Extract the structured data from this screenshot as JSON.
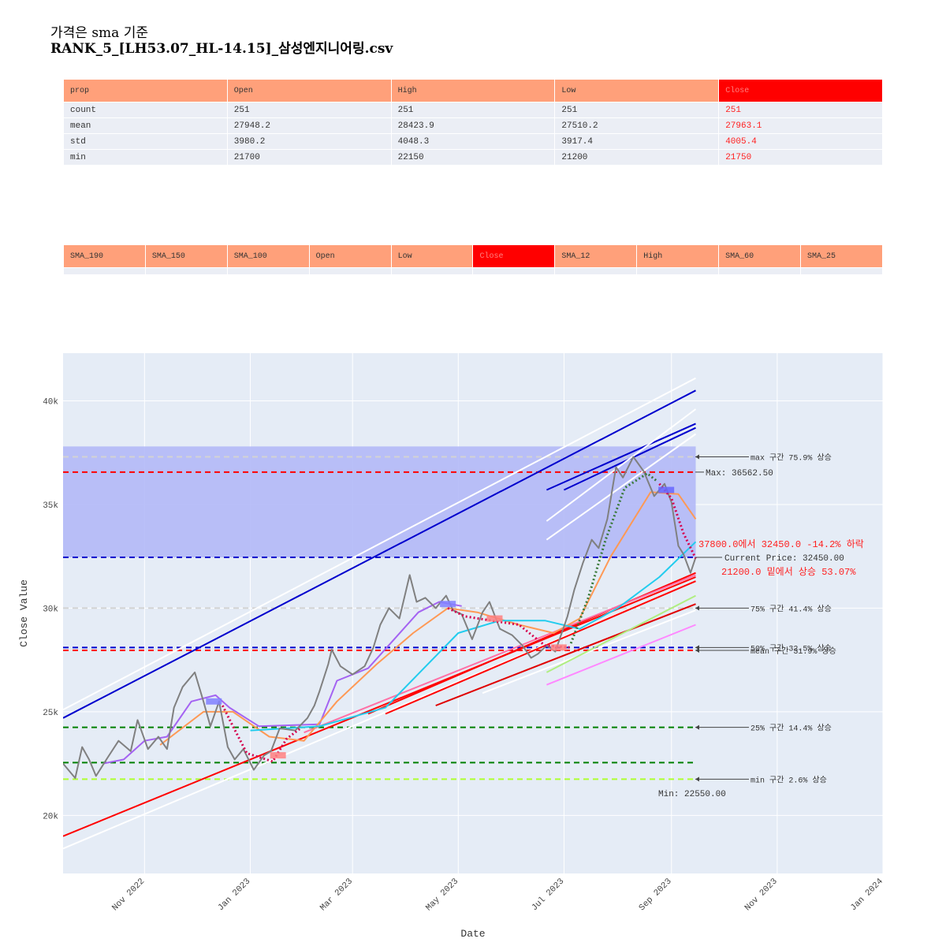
{
  "title": {
    "line1": "가격은 sma 기준",
    "line2": "RANK_5_[LH53.07_HL-14.15]_삼성엔지니어링.csv"
  },
  "stats_table": {
    "headers": [
      "prop",
      "Open",
      "High",
      "Low",
      "Close"
    ],
    "rows": [
      [
        "count",
        "251",
        "251",
        "251",
        "251"
      ],
      [
        "mean",
        "27948.2",
        "28423.9",
        "27510.2",
        "27963.1"
      ],
      [
        "std",
        "3980.2",
        "4048.3",
        "3917.4",
        "4005.4"
      ],
      [
        "min",
        "21700",
        "22150",
        "21200",
        "21750"
      ]
    ],
    "highlight_column": "Close"
  },
  "sma_table": {
    "headers": [
      "SMA_190",
      "SMA_150",
      "SMA_100",
      "Open",
      "Low",
      "Close",
      "SMA_12",
      "High",
      "SMA_60",
      "SMA_25"
    ],
    "highlight_column": "Close"
  },
  "chart_data": {
    "type": "line",
    "x_axis": {
      "label": "Date",
      "range": [
        "2022-09-15",
        "2024-01-01"
      ],
      "ticks": [
        "2022-11-01",
        "2023-01-01",
        "2023-03-01",
        "2023-05-01",
        "2023-07-01",
        "2023-09-01",
        "2023-11-01",
        "2024-01-01"
      ],
      "tick_labels": [
        "Nov 2022",
        "Jan 2023",
        "Mar 2023",
        "May 2023",
        "Jul 2023",
        "Sep 2023",
        "Nov 2023",
        "Jan 2024"
      ]
    },
    "y_axis": {
      "label": "Close Value",
      "range": [
        17200,
        42300
      ],
      "ticks": [
        20000,
        25000,
        30000,
        35000,
        40000
      ],
      "tick_labels": [
        "20k",
        "25k",
        "30k",
        "35k",
        "40k"
      ]
    },
    "grid": true,
    "shaded_band": {
      "from": 32450,
      "to": 37800,
      "color": "#b3b9f7"
    },
    "close_series": {
      "name": "Close",
      "color": "#808080",
      "points": [
        [
          "2022-09-15",
          22500
        ],
        [
          "2022-09-22",
          21800
        ],
        [
          "2022-09-26",
          23300
        ],
        [
          "2022-09-30",
          22700
        ],
        [
          "2022-10-04",
          21900
        ],
        [
          "2022-10-10",
          22700
        ],
        [
          "2022-10-17",
          23600
        ],
        [
          "2022-10-24",
          23100
        ],
        [
          "2022-10-28",
          24600
        ],
        [
          "2022-11-03",
          23200
        ],
        [
          "2022-11-09",
          23800
        ],
        [
          "2022-11-14",
          23200
        ],
        [
          "2022-11-18",
          25200
        ],
        [
          "2022-11-23",
          26200
        ],
        [
          "2022-11-30",
          26900
        ],
        [
          "2022-12-05",
          25500
        ],
        [
          "2022-12-09",
          24300
        ],
        [
          "2022-12-14",
          25500
        ],
        [
          "2022-12-19",
          23300
        ],
        [
          "2022-12-23",
          22700
        ],
        [
          "2022-12-28",
          23200
        ],
        [
          "2023-01-03",
          22200
        ],
        [
          "2023-01-09",
          22900
        ],
        [
          "2023-01-13",
          23100
        ],
        [
          "2023-01-18",
          24200
        ],
        [
          "2023-01-27",
          24100
        ],
        [
          "2023-02-03",
          24700
        ],
        [
          "2023-02-07",
          25300
        ],
        [
          "2023-02-10",
          26000
        ],
        [
          "2023-02-15",
          27300
        ],
        [
          "2023-02-17",
          28000
        ],
        [
          "2023-02-22",
          27200
        ],
        [
          "2023-03-01",
          26800
        ],
        [
          "2023-03-08",
          27200
        ],
        [
          "2023-03-13",
          28100
        ],
        [
          "2023-03-17",
          29200
        ],
        [
          "2023-03-22",
          30000
        ],
        [
          "2023-03-28",
          29500
        ],
        [
          "2023-04-03",
          31600
        ],
        [
          "2023-04-07",
          30300
        ],
        [
          "2023-04-12",
          30500
        ],
        [
          "2023-04-18",
          30000
        ],
        [
          "2023-04-24",
          30600
        ],
        [
          "2023-04-28",
          29900
        ],
        [
          "2023-05-03",
          29700
        ],
        [
          "2023-05-09",
          28500
        ],
        [
          "2023-05-15",
          29800
        ],
        [
          "2023-05-19",
          30300
        ],
        [
          "2023-05-25",
          29000
        ],
        [
          "2023-06-01",
          28700
        ],
        [
          "2023-06-07",
          28200
        ],
        [
          "2023-06-12",
          27600
        ],
        [
          "2023-06-16",
          27800
        ],
        [
          "2023-06-21",
          28200
        ],
        [
          "2023-06-26",
          27900
        ],
        [
          "2023-07-03",
          29600
        ],
        [
          "2023-07-07",
          30900
        ],
        [
          "2023-07-12",
          32200
        ],
        [
          "2023-07-17",
          33300
        ],
        [
          "2023-07-21",
          32900
        ],
        [
          "2023-07-26",
          34300
        ],
        [
          "2023-07-31",
          36800
        ],
        [
          "2023-08-04",
          36300
        ],
        [
          "2023-08-10",
          37300
        ],
        [
          "2023-08-16",
          36600
        ],
        [
          "2023-08-22",
          35400
        ],
        [
          "2023-08-28",
          36000
        ],
        [
          "2023-09-01",
          35100
        ],
        [
          "2023-09-05",
          33000
        ],
        [
          "2023-09-08",
          32600
        ],
        [
          "2023-09-12",
          31700
        ],
        [
          "2023-09-15",
          32450
        ]
      ]
    },
    "lines": [
      {
        "color": "#0000cd",
        "kind": "solid",
        "points": [
          [
            "2022-09-15",
            24700
          ],
          [
            "2023-09-15",
            40500
          ]
        ]
      },
      {
        "color": "#0000cd",
        "kind": "solid",
        "points": [
          [
            "2023-06-21",
            35700
          ],
          [
            "2023-09-15",
            38900
          ]
        ]
      },
      {
        "color": "#0000cd",
        "kind": "solid",
        "points": [
          [
            "2023-07-01",
            35700
          ],
          [
            "2023-09-15",
            38700
          ]
        ]
      },
      {
        "color": "#ffffff",
        "kind": "solid",
        "points": [
          [
            "2022-09-15",
            25100
          ],
          [
            "2023-09-15",
            41100
          ]
        ]
      },
      {
        "color": "#ffffff",
        "kind": "solid",
        "points": [
          [
            "2023-06-21",
            34200
          ],
          [
            "2023-09-15",
            39600
          ]
        ]
      },
      {
        "color": "#ffffff",
        "kind": "solid",
        "points": [
          [
            "2023-06-21",
            33300
          ],
          [
            "2023-09-15",
            38400
          ]
        ]
      },
      {
        "color": "#ffffff",
        "kind": "solid",
        "points": [
          [
            "2022-09-15",
            18400
          ],
          [
            "2023-09-15",
            31300
          ]
        ]
      },
      {
        "color": "#ff0000",
        "kind": "solid",
        "points": [
          [
            "2022-09-15",
            19000
          ],
          [
            "2023-09-15",
            31500
          ]
        ]
      },
      {
        "color": "#ff0000",
        "kind": "solid",
        "points": [
          [
            "2023-03-10",
            24900
          ],
          [
            "2023-09-15",
            31700
          ]
        ]
      },
      {
        "color": "#ff0000",
        "kind": "solid",
        "points": [
          [
            "2023-03-20",
            24900
          ],
          [
            "2023-09-15",
            31300
          ]
        ]
      },
      {
        "color": "#e00000",
        "kind": "solid",
        "points": [
          [
            "2023-04-18",
            25300
          ],
          [
            "2023-09-15",
            30200
          ]
        ]
      },
      {
        "color": "#ffffff",
        "kind": "solid",
        "points": [
          [
            "2023-05-15",
            25900
          ],
          [
            "2023-09-15",
            29900
          ]
        ]
      },
      {
        "color": "#ff70a6",
        "kind": "solid",
        "points": [
          [
            "2023-02-01",
            24000
          ],
          [
            "2023-09-15",
            31600
          ]
        ]
      },
      {
        "color": "#ff88ff",
        "kind": "solid",
        "points": [
          [
            "2023-06-21",
            26300
          ],
          [
            "2023-09-15",
            29200
          ]
        ]
      },
      {
        "color": "#b0ee80",
        "kind": "solid",
        "points": [
          [
            "2023-06-21",
            26900
          ],
          [
            "2023-09-15",
            30600
          ]
        ]
      }
    ],
    "curves": [
      {
        "color": "#a463f2",
        "points": [
          [
            "2022-10-08",
            22500
          ],
          [
            "2022-10-20",
            22700
          ],
          [
            "2022-11-01",
            23600
          ],
          [
            "2022-11-14",
            23800
          ],
          [
            "2022-11-28",
            25500
          ],
          [
            "2022-12-12",
            25800
          ],
          [
            "2022-12-20",
            25200
          ],
          [
            "2023-01-06",
            24300
          ],
          [
            "2023-02-10",
            24400
          ],
          [
            "2023-02-20",
            26500
          ],
          [
            "2023-03-10",
            27100
          ],
          [
            "2023-03-25",
            28500
          ],
          [
            "2023-04-08",
            29800
          ],
          [
            "2023-04-20",
            30300
          ],
          [
            "2023-05-03",
            30100
          ]
        ]
      },
      {
        "color": "#ff9955",
        "points": [
          [
            "2022-11-10",
            23400
          ],
          [
            "2022-12-05",
            25000
          ],
          [
            "2022-12-22",
            25000
          ],
          [
            "2023-01-12",
            23800
          ],
          [
            "2023-02-01",
            23600
          ],
          [
            "2023-02-20",
            25500
          ],
          [
            "2023-03-15",
            27300
          ],
          [
            "2023-04-05",
            28800
          ],
          [
            "2023-04-25",
            30000
          ],
          [
            "2023-05-12",
            29800
          ],
          [
            "2023-06-05",
            29200
          ],
          [
            "2023-06-25",
            28800
          ],
          [
            "2023-07-10",
            29500
          ],
          [
            "2023-07-28",
            32500
          ],
          [
            "2023-08-20",
            35600
          ],
          [
            "2023-09-05",
            35500
          ],
          [
            "2023-09-15",
            34300
          ]
        ]
      },
      {
        "color": "#22ccee",
        "points": [
          [
            "2023-01-01",
            24100
          ],
          [
            "2023-02-10",
            24300
          ],
          [
            "2023-03-20",
            25200
          ],
          [
            "2023-04-10",
            27000
          ],
          [
            "2023-05-01",
            28800
          ],
          [
            "2023-05-25",
            29400
          ],
          [
            "2023-06-20",
            29400
          ],
          [
            "2023-07-10",
            29000
          ],
          [
            "2023-08-01",
            30000
          ],
          [
            "2023-08-25",
            31500
          ],
          [
            "2023-09-15",
            33200
          ]
        ]
      }
    ],
    "crimson_dotted": [
      {
        "points": [
          [
            "2022-12-16",
            25300
          ],
          [
            "2022-12-22",
            24300
          ],
          [
            "2022-12-30",
            23000
          ],
          [
            "2023-01-14",
            22600
          ],
          [
            "2023-01-22",
            23700
          ],
          [
            "2023-01-30",
            24200
          ]
        ]
      },
      {
        "points": [
          [
            "2023-04-25",
            30000
          ],
          [
            "2023-05-05",
            29600
          ],
          [
            "2023-05-20",
            29400
          ],
          [
            "2023-06-05",
            29200
          ],
          [
            "2023-06-20",
            28200
          ],
          [
            "2023-07-05",
            28100
          ]
        ]
      },
      {
        "points": [
          [
            "2023-08-25",
            36000
          ],
          [
            "2023-09-01",
            35300
          ],
          [
            "2023-09-08",
            33600
          ],
          [
            "2023-09-15",
            32400
          ]
        ]
      }
    ],
    "green_dotted": [
      {
        "points": [
          [
            "2023-07-05",
            28300
          ],
          [
            "2023-07-15",
            30500
          ],
          [
            "2023-07-25",
            33300
          ],
          [
            "2023-08-05",
            35800
          ],
          [
            "2023-08-18",
            36500
          ],
          [
            "2023-08-24",
            36100
          ]
        ]
      }
    ],
    "markers": [
      {
        "date": "2022-12-11",
        "value": 25500,
        "color": "#8080ff"
      },
      {
        "date": "2023-01-17",
        "value": 22900,
        "color": "#ff8080"
      },
      {
        "date": "2023-04-25",
        "value": 30200,
        "color": "#8080ff"
      },
      {
        "date": "2023-05-22",
        "value": 29500,
        "color": "#ff8080"
      },
      {
        "date": "2023-06-28",
        "value": 28100,
        "color": "#ff8080"
      },
      {
        "date": "2023-08-29",
        "value": 35700,
        "color": "#6666ff"
      }
    ],
    "hlines": [
      {
        "value": 37300,
        "color": "#d3d3d3",
        "label": "max 구간 75.9% 상승"
      },
      {
        "value": 36562.5,
        "color": "#ff0000",
        "label": "Max: 36562.50"
      },
      {
        "value": 32450,
        "color": "#0000cd",
        "label": "Current Price: 32450.00"
      },
      {
        "value": 30000,
        "color": "#d3d3d3",
        "label": "75% 구간 41.4% 상승"
      },
      {
        "value": 28100,
        "color": "#0000cd",
        "label": "50% 구간 32.5% 상승"
      },
      {
        "value": 27963,
        "color": "#ff0000",
        "label": "mean 구간 31.9% 상승"
      },
      {
        "value": 24250,
        "color": "#008000",
        "label": "25% 구간 14.4% 상승"
      },
      {
        "value": 22550,
        "color": "#008000",
        "label": ""
      },
      {
        "value": 21750,
        "color": "#adff2f",
        "label": "min 구간 2.6% 상승"
      }
    ],
    "annotations": {
      "drop": "37800.0에서 32450.0 -14.2% 하락",
      "rise": "21200.0 밑에서 상승 53.07%",
      "min": "Min: 22550.00"
    }
  }
}
